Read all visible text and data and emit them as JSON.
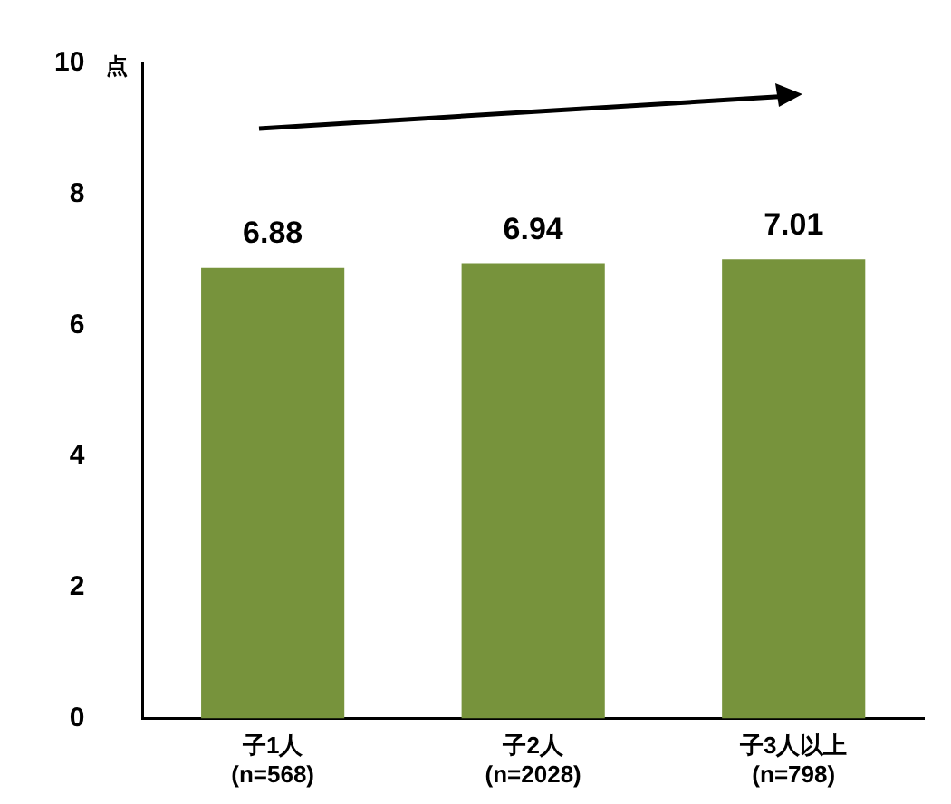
{
  "chart_data": {
    "type": "bar",
    "ylabel": "点",
    "categories": [
      "子1人\n(n=568)",
      "子2人\n(n=2028)",
      "子3人以上\n(n=798)"
    ],
    "values": [
      6.88,
      6.94,
      7.01
    ],
    "color": "#77933c",
    "ylim": [
      0,
      10
    ],
    "yticks": [
      0,
      2,
      4,
      6,
      8,
      10
    ],
    "grid": false,
    "data_labels": true,
    "legend": false
  }
}
